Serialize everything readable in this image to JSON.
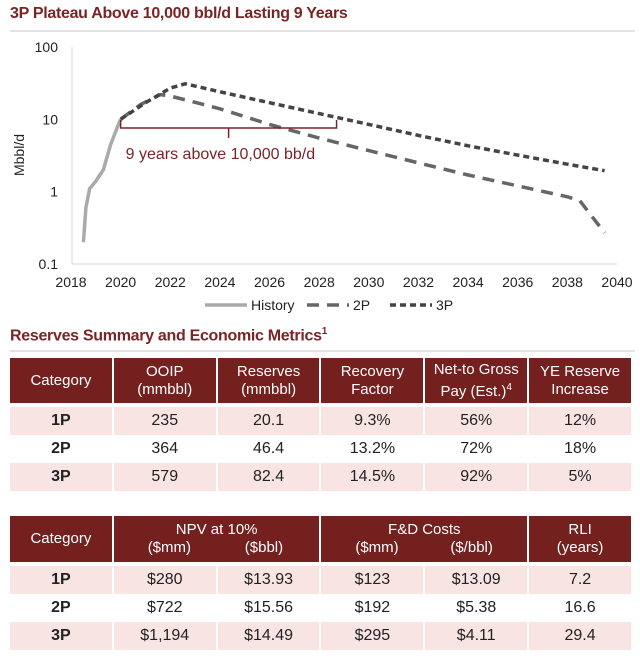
{
  "chart_data": {
    "type": "line",
    "title": "3P Plateau Above 10,000 bbl/d Lasting 9 Years",
    "ylabel": "Mbbl/d",
    "xlabel": "",
    "yscale": "log",
    "ylim": [
      0.1,
      100
    ],
    "xlim": [
      2018,
      2040
    ],
    "yticks": [
      "100",
      "10",
      "1",
      "0.1"
    ],
    "ytick_values": [
      100,
      10,
      1,
      0.1
    ],
    "xticks": [
      "2018",
      "2020",
      "2022",
      "2024",
      "2026",
      "2028",
      "2030",
      "2032",
      "2034",
      "2036",
      "2038",
      "2040"
    ],
    "legend_position": "bottom",
    "series": [
      {
        "name": "History",
        "color": "#aaaaaa",
        "style": "solid",
        "x": [
          2018.5,
          2018.6,
          2018.75,
          2019.0,
          2019.3,
          2019.6,
          2019.85,
          2020.0
        ],
        "y": [
          0.2,
          0.6,
          1.1,
          1.4,
          2.0,
          4.5,
          7.5,
          10
        ]
      },
      {
        "name": "2P",
        "color": "#666666",
        "style": "dashed",
        "x": [
          2020.0,
          2020.8,
          2021.6,
          2022.0,
          2024.0,
          2026.0,
          2028.0,
          2030.0,
          2032.0,
          2034.0,
          2036.0,
          2038.0,
          2038.5,
          2039.5
        ],
        "y": [
          10,
          16,
          22,
          21,
          14,
          8.5,
          5.5,
          3.7,
          2.5,
          1.7,
          1.2,
          0.85,
          0.75,
          0.27
        ]
      },
      {
        "name": "3P",
        "color": "#444444",
        "style": "dotted",
        "x": [
          2020.0,
          2021.0,
          2022.0,
          2022.6,
          2024.0,
          2026.0,
          2028.0,
          2030.0,
          2032.0,
          2034.0,
          2036.0,
          2038.0,
          2039.5
        ],
        "y": [
          10,
          17,
          27,
          31,
          24,
          17,
          12,
          8.5,
          6.0,
          4.3,
          3.2,
          2.4,
          1.95
        ]
      }
    ],
    "annotation": {
      "text": "9 years above 10,000 bb/d",
      "from_year": 2020,
      "to_year": 2028.7,
      "color": "#7b2426"
    }
  },
  "tables": {
    "title": "Reserves Summary and Economic Metrics",
    "title_footnote": "1",
    "reserves": {
      "headers": [
        [
          "Category"
        ],
        [
          "OOIP",
          "(mmbbl)"
        ],
        [
          "Reserves",
          "(mmbbl)"
        ],
        [
          "Recovery",
          "Factor"
        ],
        [
          "Net-to Gross",
          "Pay (Est.)"
        ],
        [
          "YE Reserve",
          "Increase"
        ]
      ],
      "net_footnote": "4",
      "rows": [
        [
          "1P",
          "235",
          "20.1",
          "9.3%",
          "56%",
          "12%"
        ],
        [
          "2P",
          "364",
          "46.4",
          "13.2%",
          "72%",
          "18%"
        ],
        [
          "3P",
          "579",
          "82.4",
          "14.5%",
          "92%",
          "5%"
        ]
      ]
    },
    "economics": {
      "headers": {
        "category": "Category",
        "npv": "NPV at 10%",
        "npv_mm": "($mm)",
        "npv_bbl": "($bbl)",
        "fd": "F&D Costs",
        "fd_mm": "($mm)",
        "fd_bbl": "($/bbl)",
        "rli": "RLI",
        "rli_unit": "(years)"
      },
      "rows": [
        [
          "1P",
          "$280",
          "$13.93",
          "$123",
          "$13.09",
          "7.2"
        ],
        [
          "2P",
          "$722",
          "$15.56",
          "$192",
          "$5.38",
          "16.6"
        ],
        [
          "3P",
          "$1,194",
          "$14.49",
          "$295",
          "$4.11",
          "29.4"
        ]
      ]
    }
  }
}
